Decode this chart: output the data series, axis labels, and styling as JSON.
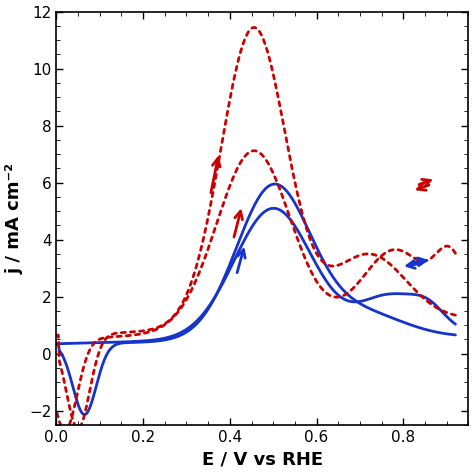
{
  "xlabel": "E / V vs RHE",
  "ylabel": "j / mA cm⁻²",
  "xlim": [
    0.0,
    0.95
  ],
  "ylim": [
    -2.5,
    12
  ],
  "xticks": [
    0.0,
    0.2,
    0.4,
    0.6,
    0.8
  ],
  "yticks": [
    -2,
    0,
    2,
    4,
    6,
    8,
    10,
    12
  ],
  "blue_color": "#1633CC",
  "red_color": "#CC0000",
  "background": "#ffffff",
  "figsize": [
    4.74,
    4.74
  ],
  "dpi": 100
}
